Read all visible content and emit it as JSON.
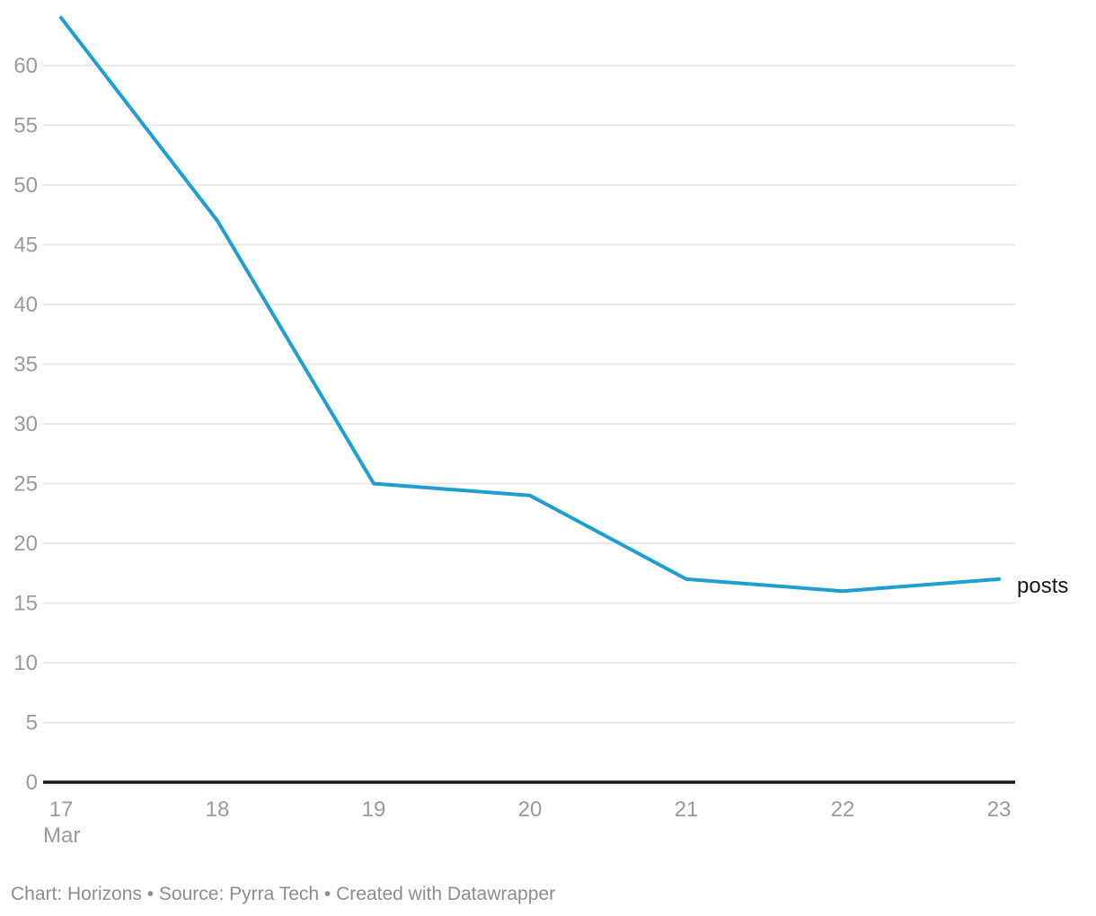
{
  "chart_data": {
    "type": "line",
    "title": "",
    "x": [
      17,
      18,
      19,
      20,
      21,
      22,
      23
    ],
    "x_tick_labels": [
      "17",
      "18",
      "19",
      "20",
      "21",
      "22",
      "23"
    ],
    "x_axis_sublabel": "Mar",
    "y_ticks": [
      0,
      5,
      10,
      15,
      20,
      25,
      30,
      35,
      40,
      45,
      50,
      55,
      60
    ],
    "ylim": [
      0,
      64
    ],
    "grid": true,
    "legend_position": "end-of-line-label",
    "series": [
      {
        "name": "posts",
        "label": "posts",
        "values": [
          64,
          47,
          25,
          24,
          17,
          16,
          17
        ],
        "color": "#1f9ed2"
      }
    ]
  },
  "footer": {
    "text": "Chart: Horizons • Source: Pyrra Tech • Created with Datawrapper"
  },
  "colors": {
    "background": "#ffffff",
    "line": "#1f9ed2",
    "grid": "#e8e8e8",
    "axis": "#1a1a1a",
    "tick_label": "#9b9b9b",
    "series_label": "#151515",
    "footer": "#8d8d8d"
  }
}
